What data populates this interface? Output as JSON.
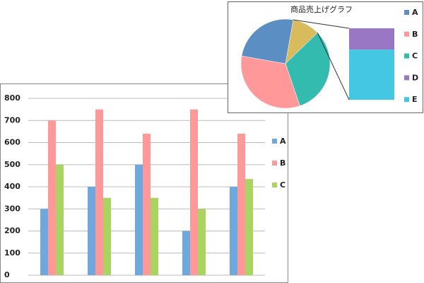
{
  "chart_data": [
    {
      "type": "bar",
      "categories": [
        null,
        null,
        null,
        null,
        null
      ],
      "series": [
        {
          "name": "A",
          "color": "#6fa8dc",
          "values": [
            300,
            400,
            500,
            200,
            400
          ]
        },
        {
          "name": "B",
          "color": "#ff9999",
          "values": [
            700,
            750,
            640,
            750,
            640
          ]
        },
        {
          "name": "C",
          "color": "#a9d461",
          "values": [
            500,
            350,
            350,
            300,
            435
          ]
        }
      ],
      "ylim": [
        0,
        800
      ],
      "yticks": [
        0,
        100,
        200,
        300,
        400,
        500,
        600,
        700,
        800
      ],
      "grid": true,
      "legend": "right"
    },
    {
      "type": "pie-of-pie",
      "title": "商品売上げグラフ",
      "categories": [
        "A",
        "B",
        "C",
        "D",
        "E"
      ],
      "values": [
        25,
        33,
        32,
        3,
        7
      ],
      "colors": [
        "#5b8fc4",
        "#ff9999",
        "#33bbb0",
        "#9977c4",
        "#44c7e2"
      ],
      "other_color": "#d9bb5e",
      "secondary_count": 2,
      "legend": "right"
    }
  ]
}
